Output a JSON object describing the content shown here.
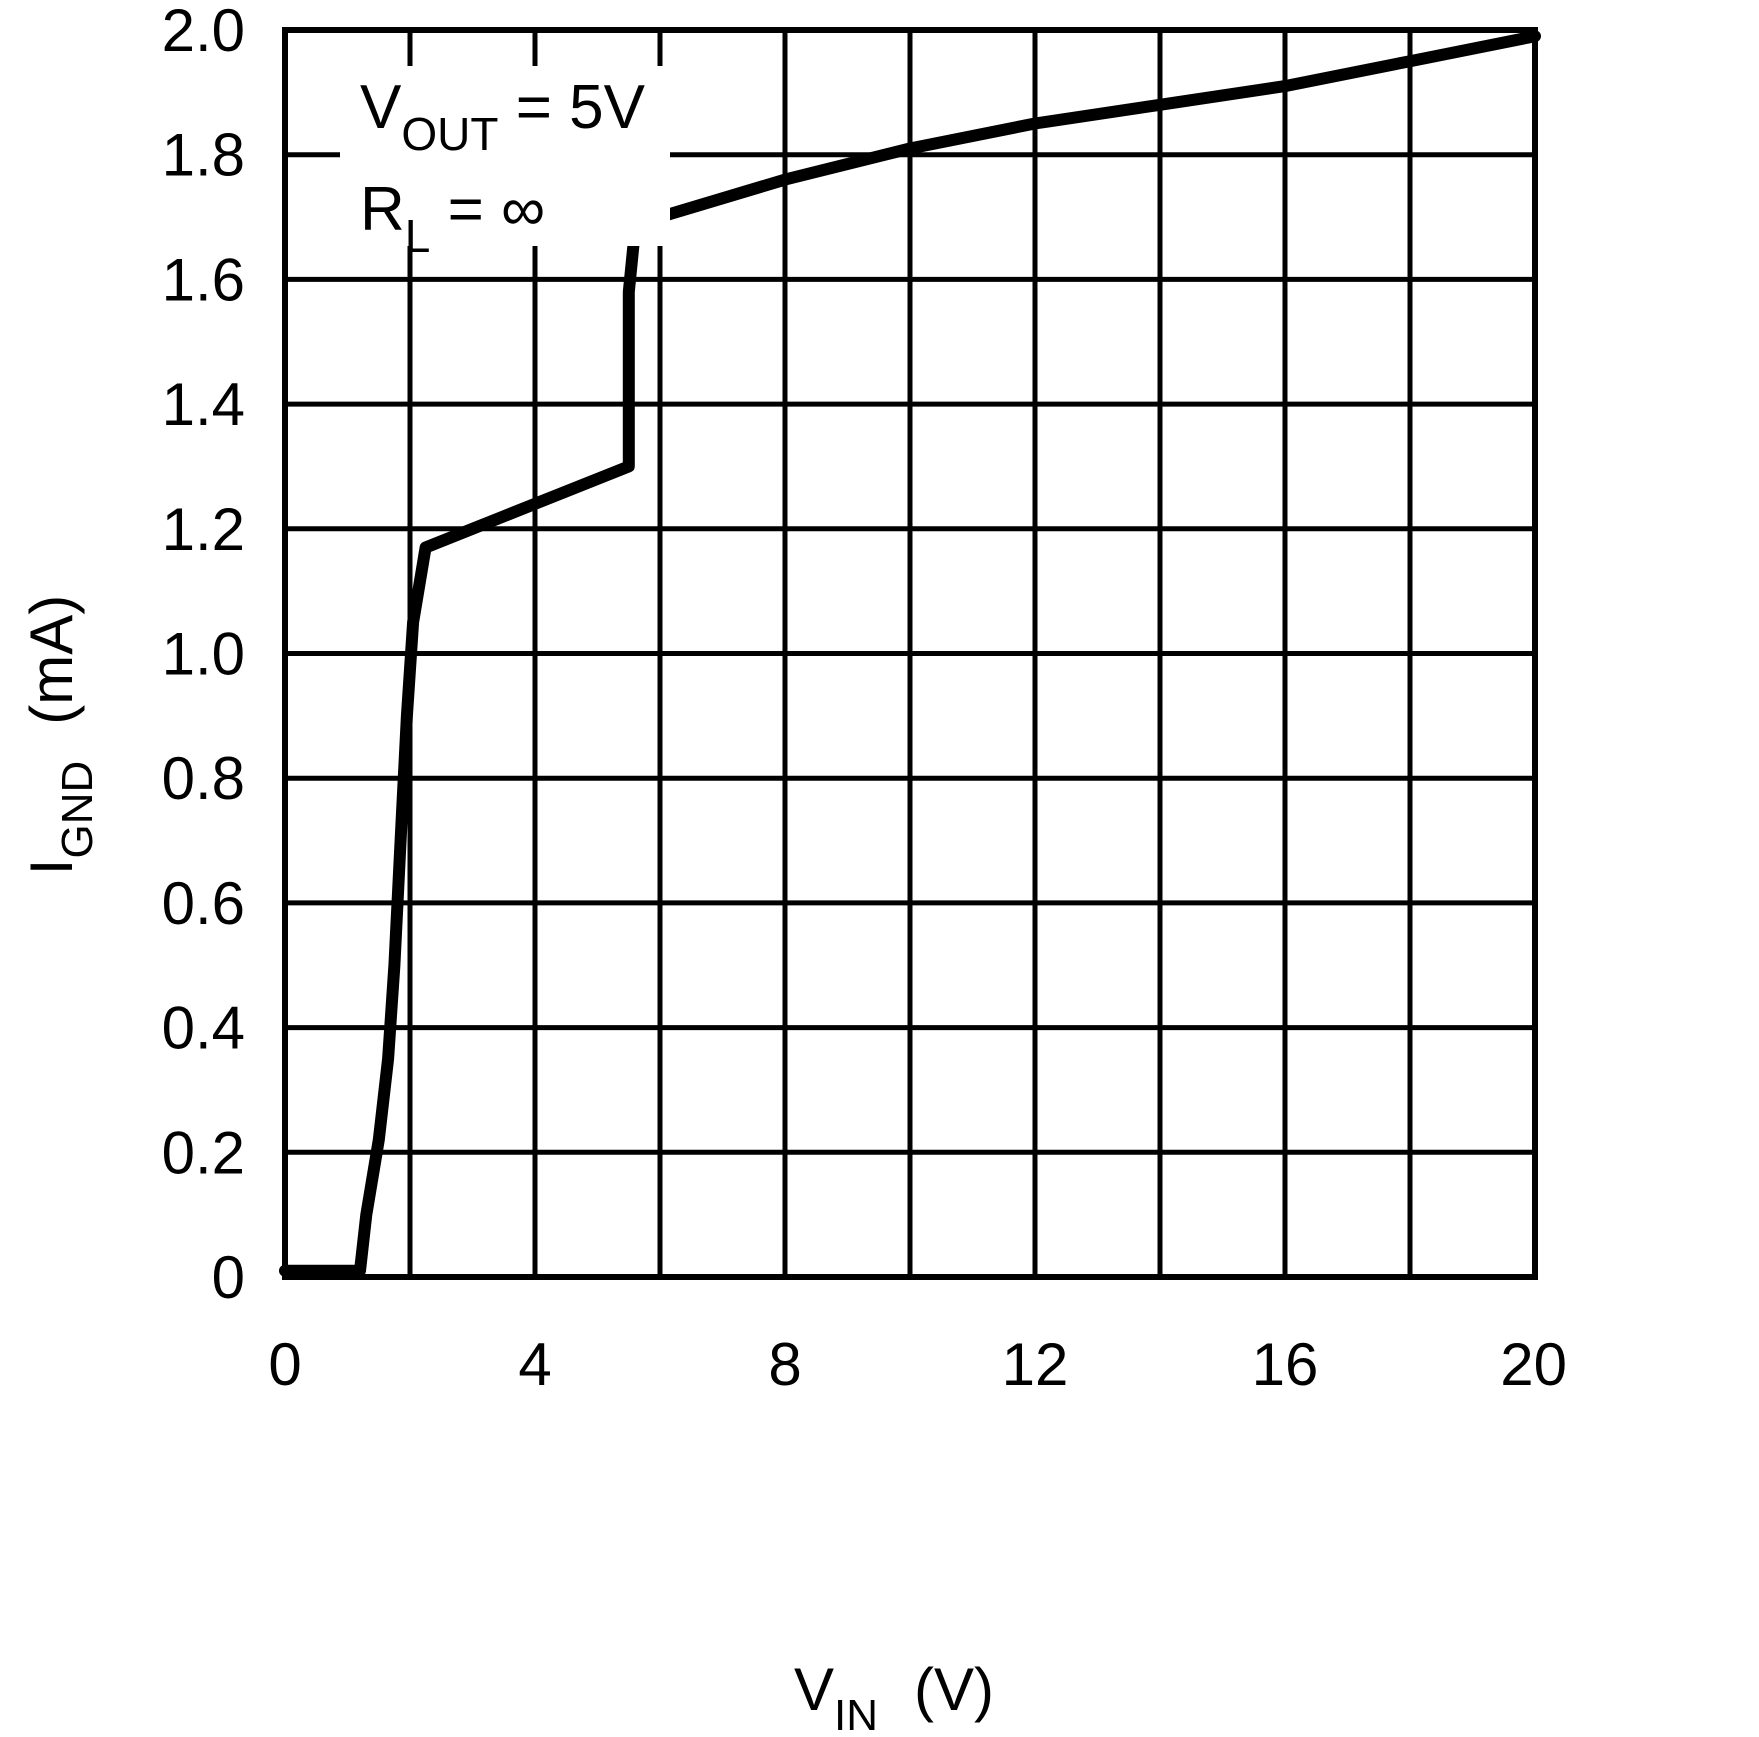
{
  "chart_data": {
    "type": "line",
    "xlabel": {
      "main": "V",
      "sub": "IN",
      "unit": "(V)"
    },
    "ylabel": {
      "main": "I",
      "sub": "GND",
      "unit": "(mA)"
    },
    "xlim": [
      0,
      20
    ],
    "ylim": [
      0,
      2.0
    ],
    "x_ticks": [
      "0",
      "4",
      "8",
      "12",
      "16",
      "20"
    ],
    "x_tick_values": [
      0,
      4,
      8,
      12,
      16,
      20
    ],
    "y_ticks": [
      "0",
      "0.2",
      "0.4",
      "0.6",
      "0.8",
      "1.0",
      "1.2",
      "1.4",
      "1.6",
      "1.8",
      "2.0"
    ],
    "y_tick_values": [
      0,
      0.2,
      0.4,
      0.6,
      0.8,
      1.0,
      1.2,
      1.4,
      1.6,
      1.8,
      2.0
    ],
    "x_grid_step": 2,
    "y_grid_step": 0.2,
    "grid": true,
    "annotations": [
      {
        "main": "V",
        "sub": "OUT",
        "rest": " = 5V"
      },
      {
        "main": "R",
        "sub": "L",
        "rest": " =  ∞"
      }
    ],
    "series": [
      {
        "color": "#000000",
        "points": [
          [
            0,
            0.01
          ],
          [
            1.2,
            0.01
          ],
          [
            1.3,
            0.1
          ],
          [
            1.5,
            0.22
          ],
          [
            1.65,
            0.35
          ],
          [
            1.75,
            0.5
          ],
          [
            1.85,
            0.7
          ],
          [
            1.95,
            0.9
          ],
          [
            2.05,
            1.05
          ],
          [
            2.25,
            1.17
          ],
          [
            3.5,
            1.22
          ],
          [
            5.5,
            1.3
          ],
          [
            5.5,
            1.58
          ],
          [
            5.6,
            1.68
          ],
          [
            6.0,
            1.7
          ],
          [
            8.0,
            1.76
          ],
          [
            10.0,
            1.81
          ],
          [
            12.0,
            1.85
          ],
          [
            14.0,
            1.88
          ],
          [
            16.0,
            1.91
          ],
          [
            18.0,
            1.95
          ],
          [
            20.0,
            1.99
          ]
        ]
      }
    ]
  }
}
